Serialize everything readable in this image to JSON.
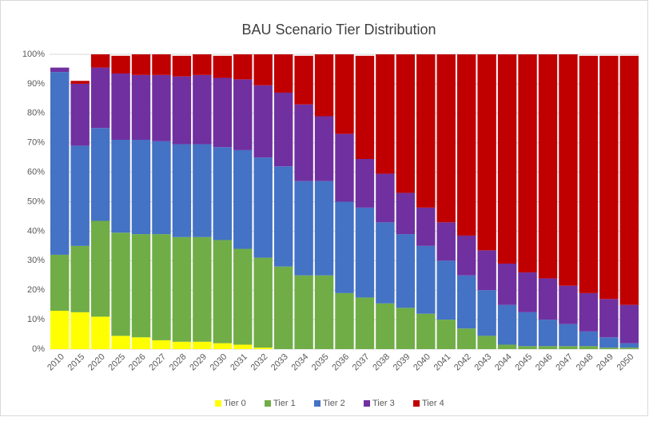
{
  "chart_data": {
    "type": "stacked_bar",
    "title": "BAU Scenario Tier Distribution",
    "categories": [
      "2010",
      "2015",
      "2020",
      "2025",
      "2026",
      "2027",
      "2028",
      "2029",
      "2030",
      "2031",
      "2032",
      "2033",
      "2034",
      "2035",
      "2036",
      "2037",
      "2038",
      "2039",
      "2040",
      "2041",
      "2042",
      "2043",
      "2044",
      "2045",
      "2046",
      "2047",
      "2048",
      "2049",
      "2050"
    ],
    "series": [
      {
        "name": "Tier 0",
        "color": "#ffff00",
        "values": [
          13,
          12.5,
          11,
          4.5,
          4,
          3,
          2.5,
          2.5,
          2,
          1.5,
          0.5,
          0,
          0,
          0,
          0,
          0,
          0,
          0,
          0,
          0,
          0,
          0,
          0,
          0,
          0,
          0,
          0,
          0,
          0
        ]
      },
      {
        "name": "Tier 1",
        "color": "#70ad47",
        "values": [
          19,
          22.5,
          32.5,
          35,
          35,
          36,
          35.5,
          35.5,
          35,
          32.5,
          30.5,
          28,
          25,
          25,
          19,
          17.5,
          15.5,
          14,
          12,
          10,
          7,
          4.5,
          1.5,
          1,
          1,
          1,
          1,
          0.5,
          0.5
        ]
      },
      {
        "name": "Tier 2",
        "color": "#4472c4",
        "values": [
          62,
          34,
          31.5,
          31.5,
          32,
          31.5,
          31.5,
          31.5,
          31.5,
          33.5,
          34,
          34,
          32,
          32,
          31,
          30.5,
          27.5,
          25,
          23,
          20,
          18,
          15.5,
          13.5,
          11.5,
          9,
          7.5,
          5,
          3.5,
          1.5
        ]
      },
      {
        "name": "Tier 3",
        "color": "#7030a0",
        "values": [
          1.5,
          21,
          20.5,
          22.5,
          22,
          22.5,
          23,
          23.5,
          23.5,
          24,
          24.5,
          25,
          26,
          22,
          23,
          16.5,
          16.5,
          14,
          13,
          13,
          13.5,
          13.5,
          14,
          13.5,
          14,
          13,
          13,
          13,
          13
        ]
      },
      {
        "name": "Tier 4",
        "color": "#c00000",
        "values": [
          0,
          1,
          4.5,
          6,
          7,
          7,
          7,
          7,
          7.5,
          8.5,
          10.5,
          13,
          16.5,
          21,
          27,
          35,
          40.5,
          47,
          52,
          57,
          61.5,
          66.5,
          71,
          74,
          76,
          78.5,
          80.5,
          82.5,
          84.5
        ]
      }
    ],
    "ylim": [
      0,
      100
    ],
    "yticks": [
      {
        "value": 0,
        "label": "0%"
      },
      {
        "value": 10,
        "label": "10%"
      },
      {
        "value": 20,
        "label": "20%"
      },
      {
        "value": 30,
        "label": "30%"
      },
      {
        "value": 40,
        "label": "40%"
      },
      {
        "value": 50,
        "label": "50%"
      },
      {
        "value": 60,
        "label": "60%"
      },
      {
        "value": 70,
        "label": "70%"
      },
      {
        "value": 80,
        "label": "80%"
      },
      {
        "value": 90,
        "label": "90%"
      },
      {
        "value": 100,
        "label": "100%"
      }
    ],
    "grid": true,
    "legend": "bottom"
  }
}
